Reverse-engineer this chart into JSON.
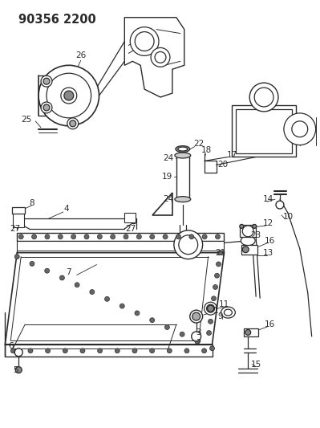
{
  "title": "90356 2200",
  "bg_color": "#ffffff",
  "line_color": "#2a2a2a",
  "label_fontsize": 7.0,
  "title_fontsize": 10.5
}
